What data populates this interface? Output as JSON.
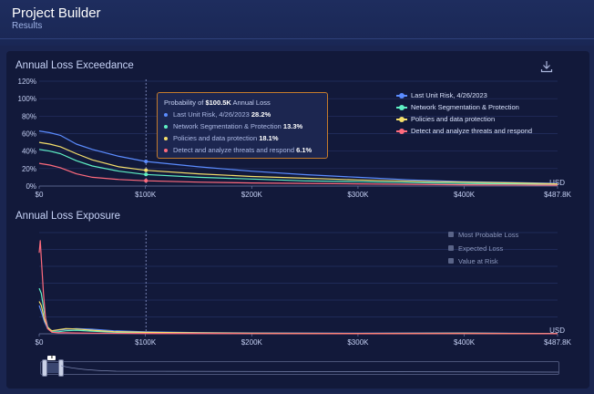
{
  "header": {
    "title": "Project Builder",
    "subtitle": "Results"
  },
  "icons": {
    "download": "download-icon"
  },
  "colors": {
    "last_unit_risk": "#5b8cff",
    "network_segmentation": "#5ff0c4",
    "policies": "#f5df6b",
    "detect": "#ff6b7d",
    "cursor_line": "#8f9bd0",
    "tooltip_border": "#c47b2c"
  },
  "tooltip": {
    "prefix": "Probability of",
    "amount": "$100.5K",
    "suffix": "Annual Loss",
    "rows": [
      {
        "label": "Last Unit Risk, 4/26/2023",
        "value": "28.2%"
      },
      {
        "label": "Network Segmentation & Protection",
        "value": "13.3%"
      },
      {
        "label": "Policies and data protection",
        "value": "18.1%"
      },
      {
        "label": "Detect and analyze threats and respond",
        "value": "6.1%"
      }
    ]
  },
  "exposure_legend": [
    "Most Probable Loss",
    "Expected Loss",
    "Value at Risk"
  ],
  "slider": {
    "grip": "III"
  },
  "chart_data": [
    {
      "type": "line",
      "title": "Annual Loss Exceedance",
      "x_unit": "USD",
      "x_ticks": [
        "$0",
        "$100K",
        "$200K",
        "$300K",
        "$400K",
        "$487.8K"
      ],
      "y_ticks": [
        "0%",
        "20%",
        "40%",
        "60%",
        "80%",
        "100%",
        "120%"
      ],
      "xlim": [
        0,
        487.8
      ],
      "ylim": [
        0,
        120
      ],
      "grid": true,
      "legend_position": "top-right",
      "cursor_x": 100.5,
      "series": [
        {
          "name": "Last Unit Risk, 4/26/2023",
          "x": [
            0,
            10,
            20,
            35,
            50,
            75,
            100,
            150,
            200,
            250,
            300,
            350,
            400,
            450,
            487.8
          ],
          "y": [
            63,
            61,
            58,
            48,
            42,
            34,
            28.2,
            22,
            17,
            13,
            10,
            7,
            5,
            4,
            3
          ]
        },
        {
          "name": "Network Segmentation & Protection",
          "x": [
            0,
            10,
            20,
            35,
            50,
            75,
            100,
            150,
            200,
            250,
            300,
            350,
            400,
            450,
            487.8
          ],
          "y": [
            42,
            40,
            37,
            29,
            23,
            17,
            13.3,
            10,
            8,
            6,
            5,
            4,
            3,
            2.5,
            2
          ]
        },
        {
          "name": "Policies and data protection",
          "x": [
            0,
            10,
            20,
            35,
            50,
            75,
            100,
            150,
            200,
            250,
            300,
            350,
            400,
            450,
            487.8
          ],
          "y": [
            50,
            48,
            45,
            37,
            30,
            22,
            18.1,
            14,
            11,
            9,
            7,
            5.5,
            4.5,
            3.5,
            2.5
          ]
        },
        {
          "name": "Detect and analyze threats and respond",
          "x": [
            0,
            10,
            20,
            35,
            50,
            75,
            100,
            150,
            200,
            250,
            300,
            350,
            400,
            450,
            487.8
          ],
          "y": [
            26,
            24,
            21,
            14,
            10,
            7.5,
            6.1,
            4.5,
            3.5,
            3,
            2.5,
            2,
            1.5,
            1.2,
            1
          ]
        }
      ]
    },
    {
      "type": "line",
      "title": "Annual Loss Exposure",
      "x_unit": "USD",
      "x_ticks": [
        "$0",
        "$100K",
        "$200K",
        "$300K",
        "$400K",
        "$487.8K"
      ],
      "xlim": [
        0,
        487.8
      ],
      "ylim": [
        0,
        1
      ],
      "grid": true,
      "legend_position": "top-right",
      "cursor_x": 100.5,
      "series": [
        {
          "name": "Last Unit Risk, 4/26/2023",
          "x": [
            0,
            2,
            5,
            8,
            12,
            18,
            25,
            35,
            50,
            70,
            100,
            150,
            200,
            300,
            400,
            487.8
          ],
          "y": [
            0.28,
            0.22,
            0.12,
            0.05,
            0.03,
            0.035,
            0.045,
            0.05,
            0.045,
            0.03,
            0.02,
            0.012,
            0.008,
            0.005,
            0.008,
            0.003
          ]
        },
        {
          "name": "Network Segmentation & Protection",
          "x": [
            0,
            2,
            5,
            8,
            12,
            18,
            25,
            35,
            50,
            70,
            100,
            150,
            200,
            300,
            400,
            487.8
          ],
          "y": [
            0.45,
            0.4,
            0.2,
            0.07,
            0.02,
            0.02,
            0.03,
            0.035,
            0.025,
            0.015,
            0.008,
            0.005,
            0.003,
            0.002,
            0.004,
            0.001
          ]
        },
        {
          "name": "Policies and data protection",
          "x": [
            0,
            2,
            5,
            8,
            12,
            18,
            25,
            35,
            50,
            70,
            100,
            150,
            200,
            300,
            400,
            487.8
          ],
          "y": [
            0.32,
            0.28,
            0.14,
            0.06,
            0.03,
            0.04,
            0.05,
            0.048,
            0.035,
            0.022,
            0.014,
            0.009,
            0.006,
            0.004,
            0.006,
            0.002
          ]
        },
        {
          "name": "Detect and analyze threats and respond",
          "x": [
            0,
            1,
            2,
            4,
            6,
            8,
            12,
            18,
            25,
            35,
            50,
            100,
            200,
            300,
            400,
            487.8
          ],
          "y": [
            0.8,
            0.92,
            0.75,
            0.4,
            0.15,
            0.05,
            0.015,
            0.01,
            0.01,
            0.008,
            0.006,
            0.004,
            0.002,
            0.001,
            0.002,
            0.001
          ]
        }
      ]
    }
  ]
}
